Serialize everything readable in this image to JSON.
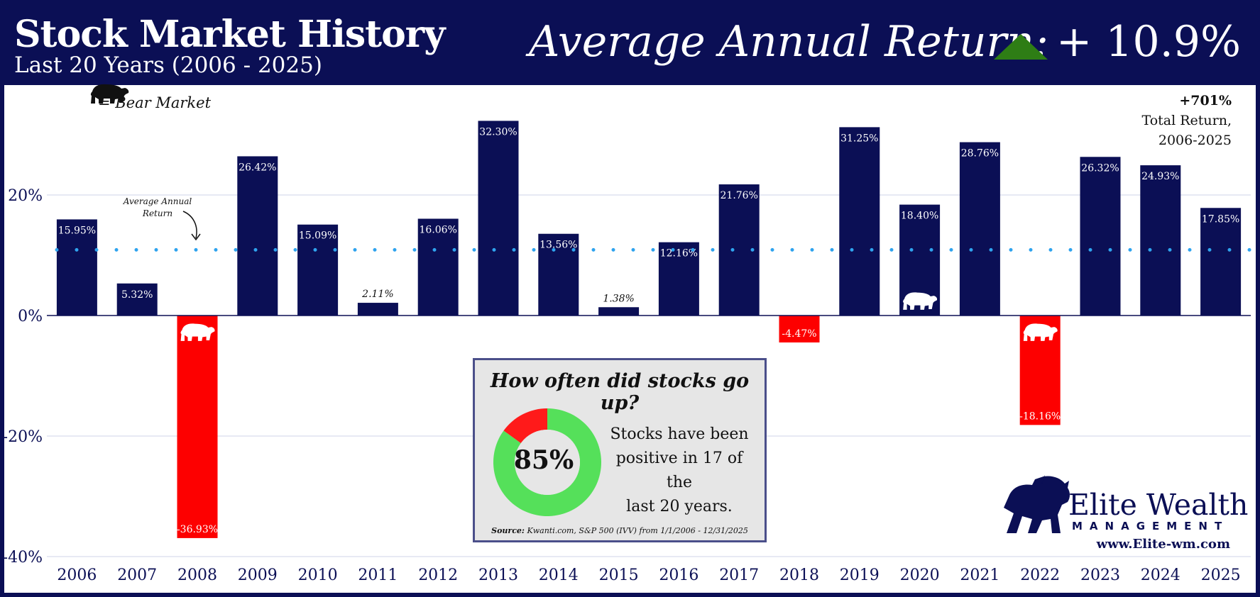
{
  "header": {
    "title": "Stock Market History",
    "subtitle": "Last 20 Years (2006 - 2025)",
    "avg_label": "Average Annual Return:",
    "avg_value": "+ 10.9%"
  },
  "legend": {
    "label": "= Bear Market"
  },
  "total_return": {
    "value": "+701%",
    "line1": "Total Return,",
    "line2": "2006-2025"
  },
  "avg_annotation": {
    "line1": "Average Annual",
    "line2": "Return"
  },
  "info_box": {
    "title": "How often did stocks go up?",
    "percent": "85%",
    "text_line1": "Stocks have been",
    "text_line2": "positive in 17 of the",
    "text_line3": "last 20 years.",
    "source_label": "Source:",
    "source_text": "Kwanti.com, S&P 500 (IVV) from 1/1/2006 - 12/31/2025",
    "positive_share": 0.85
  },
  "brand": {
    "name": "Elite Wealth",
    "sub": "MANAGEMENT",
    "website": "www.Elite-wm.com"
  },
  "colors": {
    "navy": "#0b0f55",
    "negative": "#fd0000",
    "avg_line": "#2fa3ee",
    "donut_pos": "#55e05a",
    "donut_neg": "#ff1a1a",
    "triangle": "#2e7d15"
  },
  "chart_data": {
    "type": "bar",
    "title": "Stock Market History",
    "categories": [
      "2006",
      "2007",
      "2008",
      "2009",
      "2010",
      "2011",
      "2012",
      "2013",
      "2014",
      "2015",
      "2016",
      "2017",
      "2018",
      "2019",
      "2020",
      "2021",
      "2022",
      "2023",
      "2024",
      "2025"
    ],
    "values": [
      15.95,
      5.32,
      -36.93,
      26.42,
      15.09,
      2.11,
      16.06,
      32.3,
      13.56,
      1.38,
      12.16,
      21.76,
      -4.47,
      31.25,
      18.4,
      28.76,
      -18.16,
      26.32,
      24.93,
      17.85
    ],
    "value_labels": [
      "15.95%",
      "5.32%",
      "-36.93%",
      "26.42%",
      "15.09%",
      "2.11%",
      "16.06%",
      "32.30%",
      "13.56%",
      "1.38%",
      "12.16%",
      "21.76%",
      "-4.47%",
      "31.25%",
      "18.40%",
      "28.76%",
      "-18.16%",
      "26.32%",
      "24.93%",
      "17.85%"
    ],
    "bear_markets": [
      "2008",
      "2020",
      "2022"
    ],
    "average": 10.9,
    "ylim": [
      -40,
      40
    ],
    "yticks": [
      -40,
      -20,
      0,
      20
    ],
    "ytick_labels": [
      "-40%",
      "-20%",
      "0%",
      "20%"
    ],
    "xlabel": "",
    "ylabel": "",
    "grid": true
  }
}
